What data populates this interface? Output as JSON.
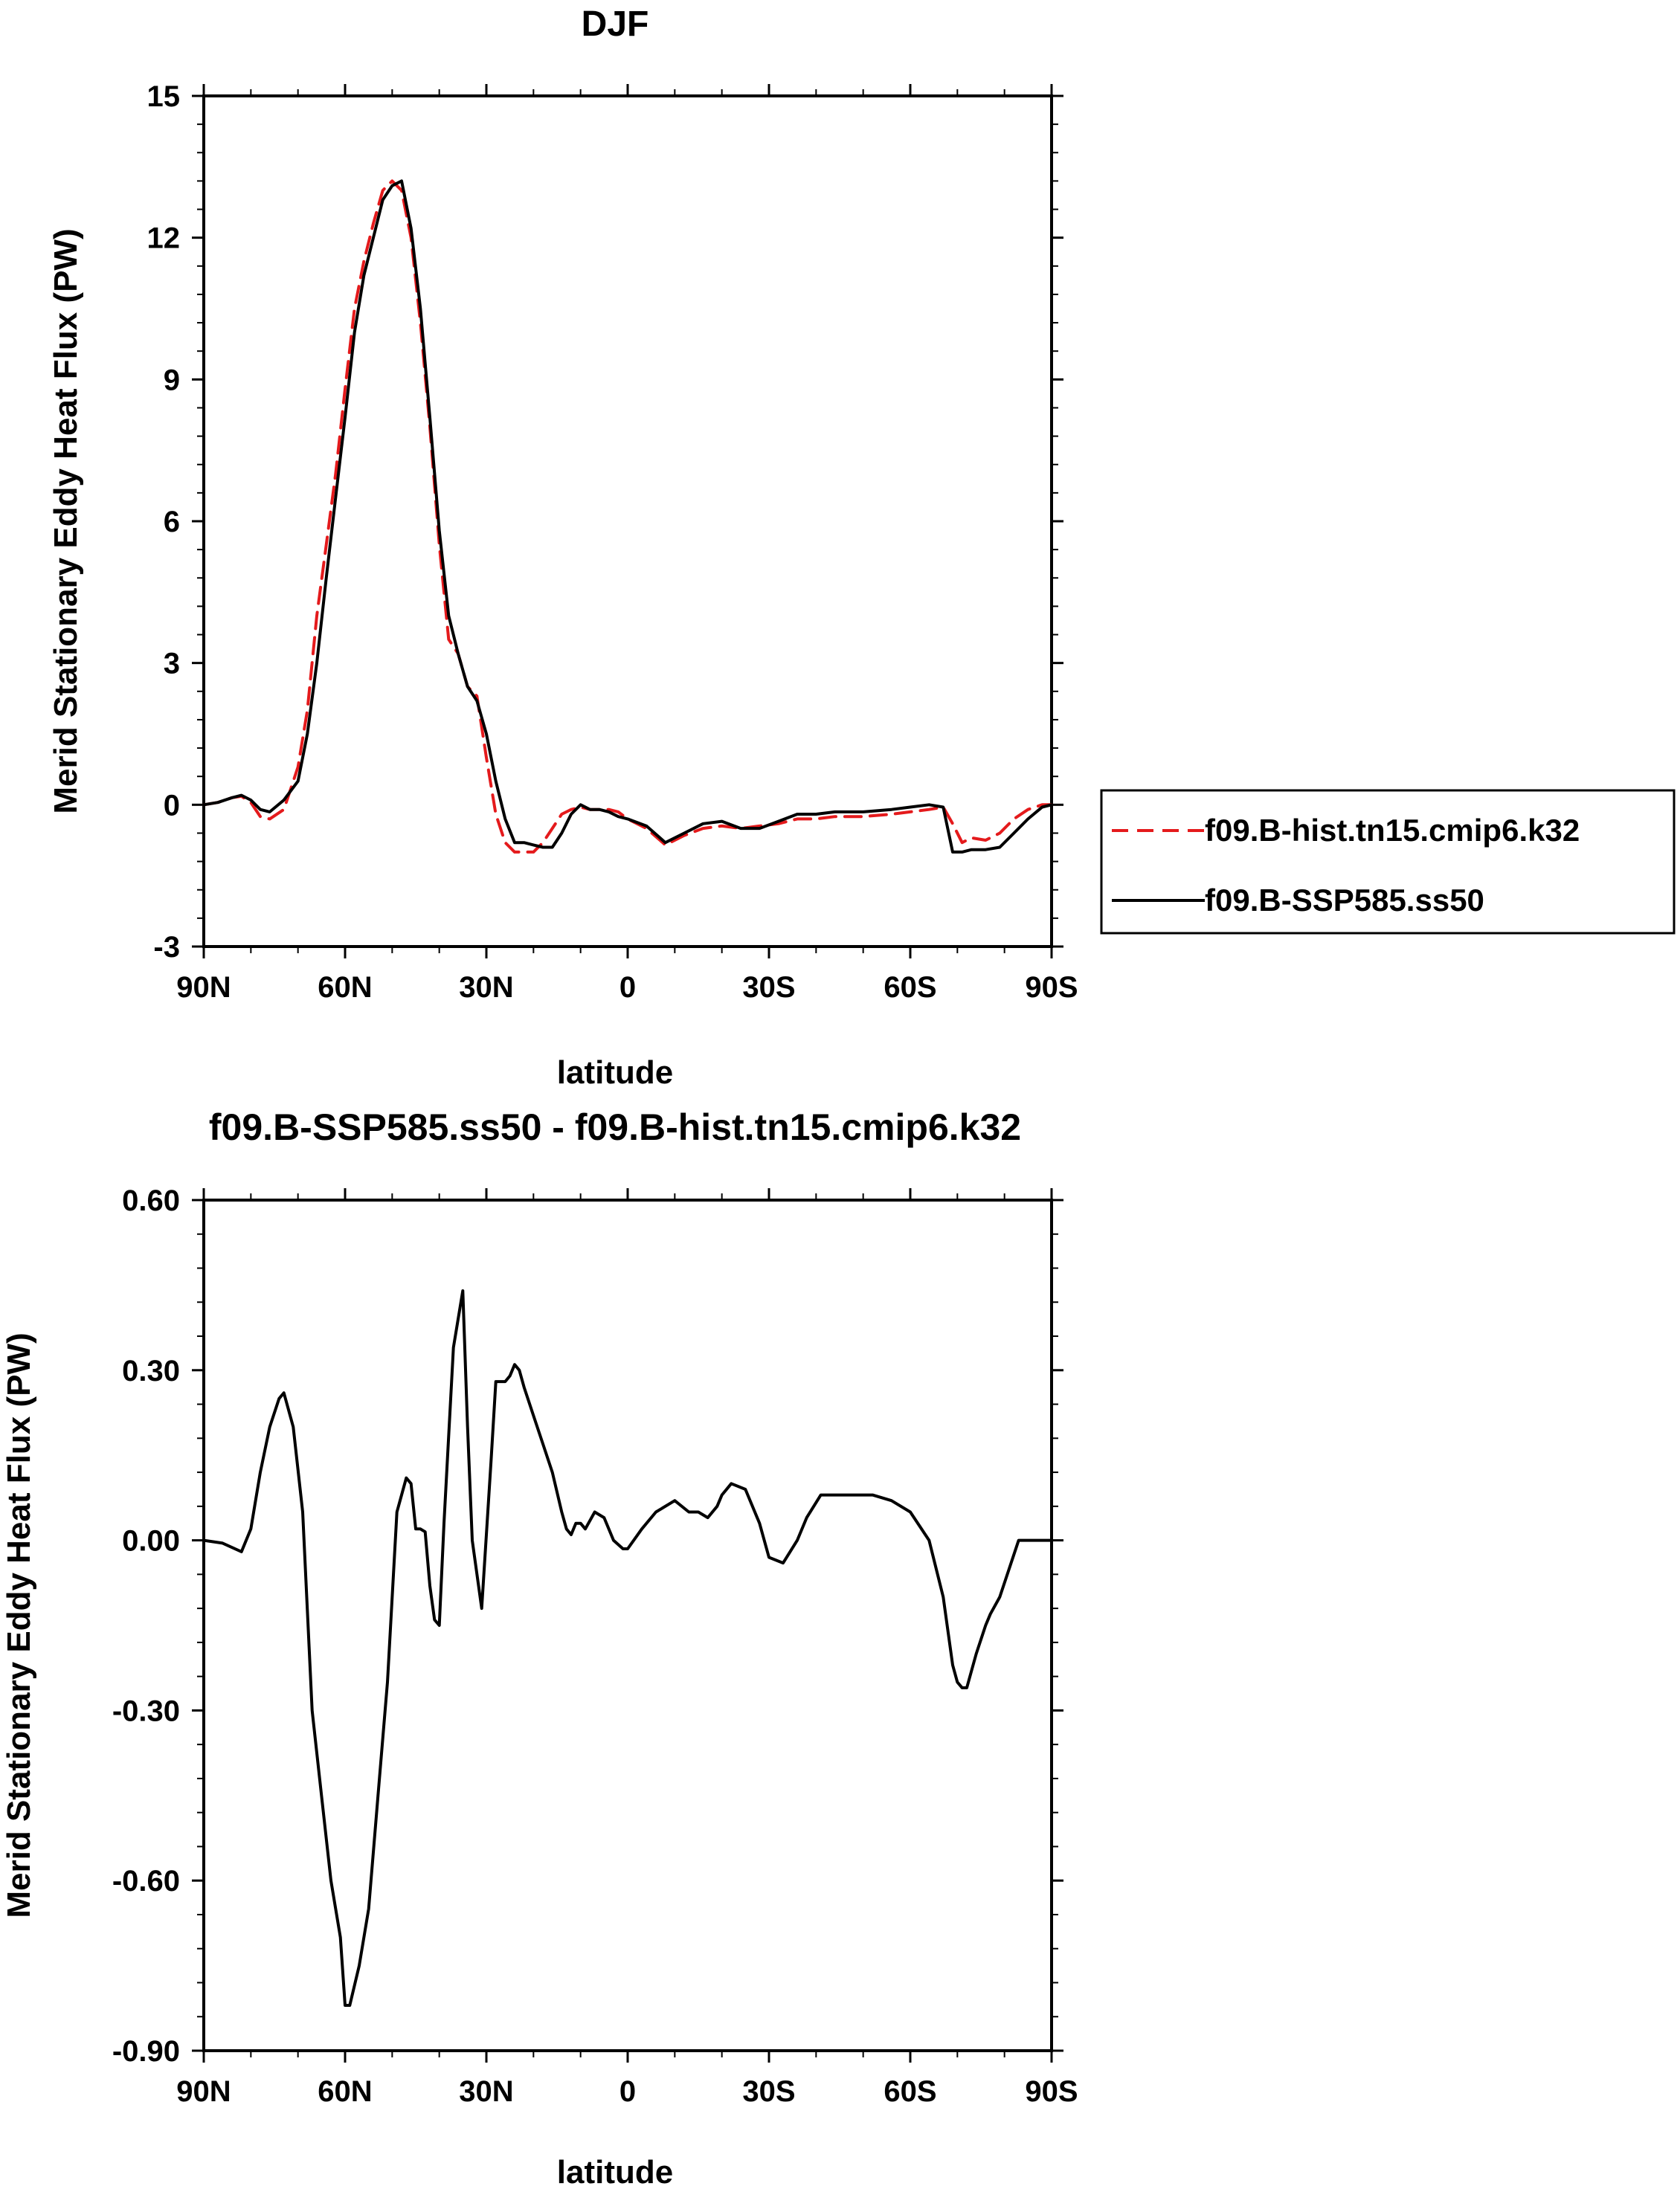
{
  "chart_data": [
    {
      "type": "line",
      "title": "DJF",
      "xlabel": "latitude",
      "ylabel": "Merid Stationary Eddy Heat Flux (PW)",
      "xlim": [
        90,
        -90
      ],
      "ylim": [
        -3,
        15
      ],
      "xticks": [
        90,
        60,
        30,
        0,
        -30,
        -60,
        -90
      ],
      "xtick_labels": [
        "90N",
        "60N",
        "30N",
        "0",
        "30S",
        "60S",
        "90S"
      ],
      "yticks": [
        -3,
        0,
        3,
        6,
        9,
        12,
        15
      ],
      "ytick_labels": [
        "-3",
        "0",
        "3",
        "6",
        "9",
        "12",
        "15"
      ],
      "legend": {
        "placement": "outside-right",
        "entries": [
          "f09.B-hist.tn15.cmip6.k32",
          "f09.B-SSP585.ss50"
        ]
      },
      "series": [
        {
          "name": "f09.B-hist.tn15.cmip6.k32",
          "color": "#e41a1c",
          "style": "dashed",
          "x": [
            90,
            87,
            84,
            82,
            80,
            78,
            76,
            73,
            70,
            68,
            66,
            64,
            62,
            60,
            58,
            56,
            54,
            52,
            50,
            48,
            46,
            44,
            42,
            40,
            38,
            36,
            34,
            32,
            30,
            28,
            26,
            24,
            22,
            20,
            18,
            16,
            14,
            12,
            10,
            8,
            6,
            4,
            2,
            0,
            -4,
            -8,
            -12,
            -16,
            -20,
            -24,
            -28,
            -32,
            -36,
            -40,
            -44,
            -50,
            -56,
            -60,
            -64,
            -67,
            -69,
            -71,
            -73,
            -76,
            -79,
            -82,
            -85,
            -88,
            -90
          ],
          "y": [
            0,
            0.05,
            0.15,
            0.18,
            0.05,
            -0.25,
            -0.3,
            -0.1,
            0.8,
            2.0,
            4.0,
            5.5,
            7.0,
            8.8,
            10.5,
            11.5,
            12.3,
            13.0,
            13.2,
            13.0,
            12.0,
            10.2,
            8.0,
            5.5,
            3.5,
            3.2,
            2.5,
            2.3,
            1.0,
            -0.2,
            -0.8,
            -1.0,
            -1.0,
            -1.0,
            -0.8,
            -0.5,
            -0.2,
            -0.1,
            -0.05,
            -0.1,
            -0.1,
            -0.1,
            -0.15,
            -0.3,
            -0.5,
            -0.85,
            -0.65,
            -0.5,
            -0.45,
            -0.5,
            -0.45,
            -0.4,
            -0.3,
            -0.3,
            -0.25,
            -0.25,
            -0.2,
            -0.15,
            -0.1,
            -0.05,
            -0.4,
            -0.8,
            -0.7,
            -0.75,
            -0.6,
            -0.3,
            -0.1,
            0,
            0
          ]
        },
        {
          "name": "f09.B-SSP585.ss50",
          "color": "#000000",
          "style": "solid",
          "x": [
            90,
            87,
            84,
            82,
            80,
            78,
            76,
            73,
            70,
            68,
            66,
            64,
            62,
            60,
            58,
            56,
            54,
            52,
            50,
            48,
            46,
            44,
            42,
            40,
            38,
            36,
            34,
            32,
            30,
            28,
            26,
            24,
            22,
            20,
            18,
            16,
            14,
            12,
            10,
            8,
            6,
            4,
            2,
            0,
            -4,
            -8,
            -12,
            -16,
            -20,
            -24,
            -28,
            -32,
            -36,
            -40,
            -44,
            -50,
            -56,
            -60,
            -64,
            -67,
            -69,
            -71,
            -73,
            -76,
            -79,
            -82,
            -85,
            -88,
            -90
          ],
          "y": [
            0,
            0.05,
            0.15,
            0.2,
            0.1,
            -0.1,
            -0.15,
            0.1,
            0.5,
            1.5,
            3.0,
            4.8,
            6.5,
            8.2,
            10.0,
            11.2,
            12.0,
            12.8,
            13.1,
            13.2,
            12.2,
            10.5,
            8.2,
            5.8,
            4.0,
            3.2,
            2.5,
            2.2,
            1.5,
            0.5,
            -0.3,
            -0.8,
            -0.8,
            -0.85,
            -0.9,
            -0.9,
            -0.6,
            -0.2,
            0,
            -0.1,
            -0.1,
            -0.15,
            -0.25,
            -0.3,
            -0.45,
            -0.8,
            -0.6,
            -0.4,
            -0.35,
            -0.5,
            -0.5,
            -0.35,
            -0.2,
            -0.2,
            -0.15,
            -0.15,
            -0.1,
            -0.05,
            0,
            -0.05,
            -1.0,
            -1.0,
            -0.95,
            -0.95,
            -0.9,
            -0.6,
            -0.3,
            -0.05,
            0
          ]
        }
      ]
    },
    {
      "type": "line",
      "title": "f09.B-SSP585.ss50 - f09.B-hist.tn15.cmip6.k32",
      "xlabel": "latitude",
      "ylabel": "Merid Stationary Eddy Heat Flux (PW)",
      "xlim": [
        90,
        -90
      ],
      "ylim": [
        -0.9,
        0.6
      ],
      "xticks": [
        90,
        60,
        30,
        0,
        -30,
        -60,
        -90
      ],
      "xtick_labels": [
        "90N",
        "60N",
        "30N",
        "0",
        "30S",
        "60S",
        "90S"
      ],
      "yticks": [
        -0.9,
        -0.6,
        -0.3,
        0.0,
        0.3,
        0.6
      ],
      "ytick_labels": [
        "-0.90",
        "-0.60",
        "-0.30",
        "0.00",
        "0.30",
        "0.60"
      ],
      "series": [
        {
          "name": "difference",
          "color": "#000000",
          "style": "solid",
          "x": [
            90,
            86,
            82,
            80,
            78,
            76,
            74,
            73,
            71,
            69,
            67,
            65,
            63,
            61,
            60,
            59,
            57,
            55,
            53,
            51,
            49,
            47,
            46,
            45,
            44,
            43,
            42,
            41,
            40,
            39,
            37,
            35,
            34,
            33,
            31,
            29,
            28,
            26,
            25,
            24,
            23,
            22,
            20,
            18,
            16,
            14,
            13,
            12,
            11,
            10,
            9,
            7,
            5,
            3,
            1,
            0,
            -3,
            -6,
            -10,
            -13,
            -15,
            -17,
            -19,
            -20,
            -22,
            -25,
            -28,
            -30,
            -33,
            -36,
            -38,
            -41,
            -44,
            -48,
            -52,
            -56,
            -60,
            -64,
            -67,
            -69,
            -70,
            -71,
            -72,
            -74,
            -76,
            -77,
            -79,
            -81,
            -83,
            -85,
            -88,
            -90
          ],
          "y": [
            0,
            -0.005,
            -0.02,
            0.02,
            0.12,
            0.2,
            0.25,
            0.26,
            0.2,
            0.05,
            -0.3,
            -0.45,
            -0.6,
            -0.7,
            -0.82,
            -0.82,
            -0.75,
            -0.65,
            -0.45,
            -0.25,
            0.05,
            0.11,
            0.1,
            0.02,
            0.02,
            0.015,
            -0.08,
            -0.14,
            -0.15,
            0.03,
            0.34,
            0.44,
            0.2,
            0.0,
            -0.12,
            0.14,
            0.28,
            0.28,
            0.29,
            0.31,
            0.3,
            0.27,
            0.22,
            0.17,
            0.12,
            0.05,
            0.02,
            0.01,
            0.03,
            0.03,
            0.02,
            0.05,
            0.04,
            0.0,
            -0.015,
            -0.015,
            0.02,
            0.05,
            0.07,
            0.05,
            0.05,
            0.04,
            0.06,
            0.08,
            0.1,
            0.09,
            0.03,
            -0.03,
            -0.04,
            0.0,
            0.04,
            0.08,
            0.08,
            0.08,
            0.08,
            0.07,
            0.05,
            0.0,
            -0.1,
            -0.22,
            -0.25,
            -0.26,
            -0.26,
            -0.2,
            -0.15,
            -0.13,
            -0.1,
            -0.05,
            0.0,
            0.0,
            0.0,
            0.0
          ]
        }
      ]
    }
  ]
}
